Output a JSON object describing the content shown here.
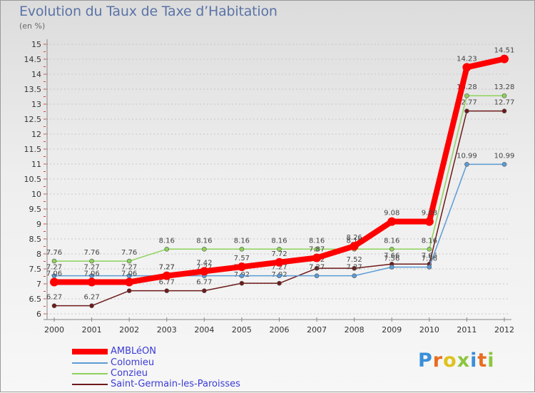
{
  "header": {
    "title": "Evolution du Taux de Taxe d’Habitation",
    "unit": "(en %)"
  },
  "brand": {
    "letters": [
      "P",
      "r",
      "o",
      "x",
      "i",
      "t",
      "i"
    ],
    "colors": [
      "#3a8fd9",
      "#e86d1f",
      "#e0c21c",
      "#8cc63f",
      "#3a8fd9",
      "#e86d1f",
      "#8cc63f"
    ]
  },
  "chart_data": {
    "type": "line",
    "title": "Evolution du Taux de Taxe d’Habitation",
    "ylabel": "(en %)",
    "xlabel": "",
    "x": [
      "2000",
      "2001",
      "2002",
      "2003",
      "2004",
      "2005",
      "2006",
      "2007",
      "2008",
      "2009",
      "2010",
      "2011",
      "2012"
    ],
    "ylim": [
      6,
      15
    ],
    "yticks": [
      "6",
      "6.5",
      "7",
      "7.5",
      "8",
      "8.5",
      "9",
      "9.5",
      "10",
      "10.5",
      "11",
      "11.5",
      "12",
      "12.5",
      "13",
      "13.5",
      "14",
      "14.5",
      "15"
    ],
    "grid": "horizontal dashed",
    "legend_position": "bottom-left",
    "series": [
      {
        "name": "Saint-Germain-les-Paroisses",
        "color": "#6e1a1a",
        "values": [
          6.27,
          6.27,
          6.77,
          6.77,
          6.77,
          7.02,
          7.02,
          7.52,
          7.52,
          7.66,
          7.66,
          12.77,
          12.77
        ],
        "labels": [
          "6.27",
          "6.27",
          "6.77",
          "6.77",
          "6.77",
          "7.02",
          "7.02",
          "7.52",
          "7.52",
          "7.66",
          "7.66",
          "12.77",
          "12.77"
        ]
      },
      {
        "name": "Colomieu",
        "color": "#5b9bd5",
        "values": [
          7.27,
          7.27,
          7.27,
          7.27,
          7.27,
          7.27,
          7.27,
          7.27,
          7.27,
          7.56,
          7.56,
          10.99,
          10.99
        ],
        "labels": [
          "7.27",
          "7.27",
          "7.27",
          "7.27",
          "7.27",
          "7.27",
          "7.27",
          "7.27",
          "7.27",
          "7.56",
          "7.56",
          "10.99",
          "10.99"
        ]
      },
      {
        "name": "Conzieu",
        "color": "#8ed25a",
        "values": [
          7.76,
          7.76,
          7.76,
          8.16,
          8.16,
          8.16,
          8.16,
          8.16,
          8.16,
          8.16,
          8.16,
          13.28,
          13.28
        ],
        "labels": [
          "7.76",
          "7.76",
          "7.76",
          "8.16",
          "8.16",
          "8.16",
          "8.16",
          "8.16",
          "8.16",
          "8.16",
          "8.16",
          "13.28",
          "13.28"
        ]
      },
      {
        "name": "AMBLéON",
        "color": "#ff0000",
        "values": [
          7.06,
          7.06,
          7.06,
          7.27,
          7.42,
          7.57,
          7.72,
          7.87,
          8.26,
          9.08,
          9.08,
          14.23,
          14.51
        ],
        "labels": [
          "7.06",
          "7.06",
          "7.06",
          "7.27",
          "7.42",
          "7.57",
          "7.72",
          "7.87",
          "8.26",
          "9.08",
          "9.08",
          "14.23",
          "14.51"
        ]
      }
    ],
    "legend": [
      "AMBLéON",
      "Colomieu",
      "Conzieu",
      "Saint-Germain-les-Paroisses"
    ]
  }
}
